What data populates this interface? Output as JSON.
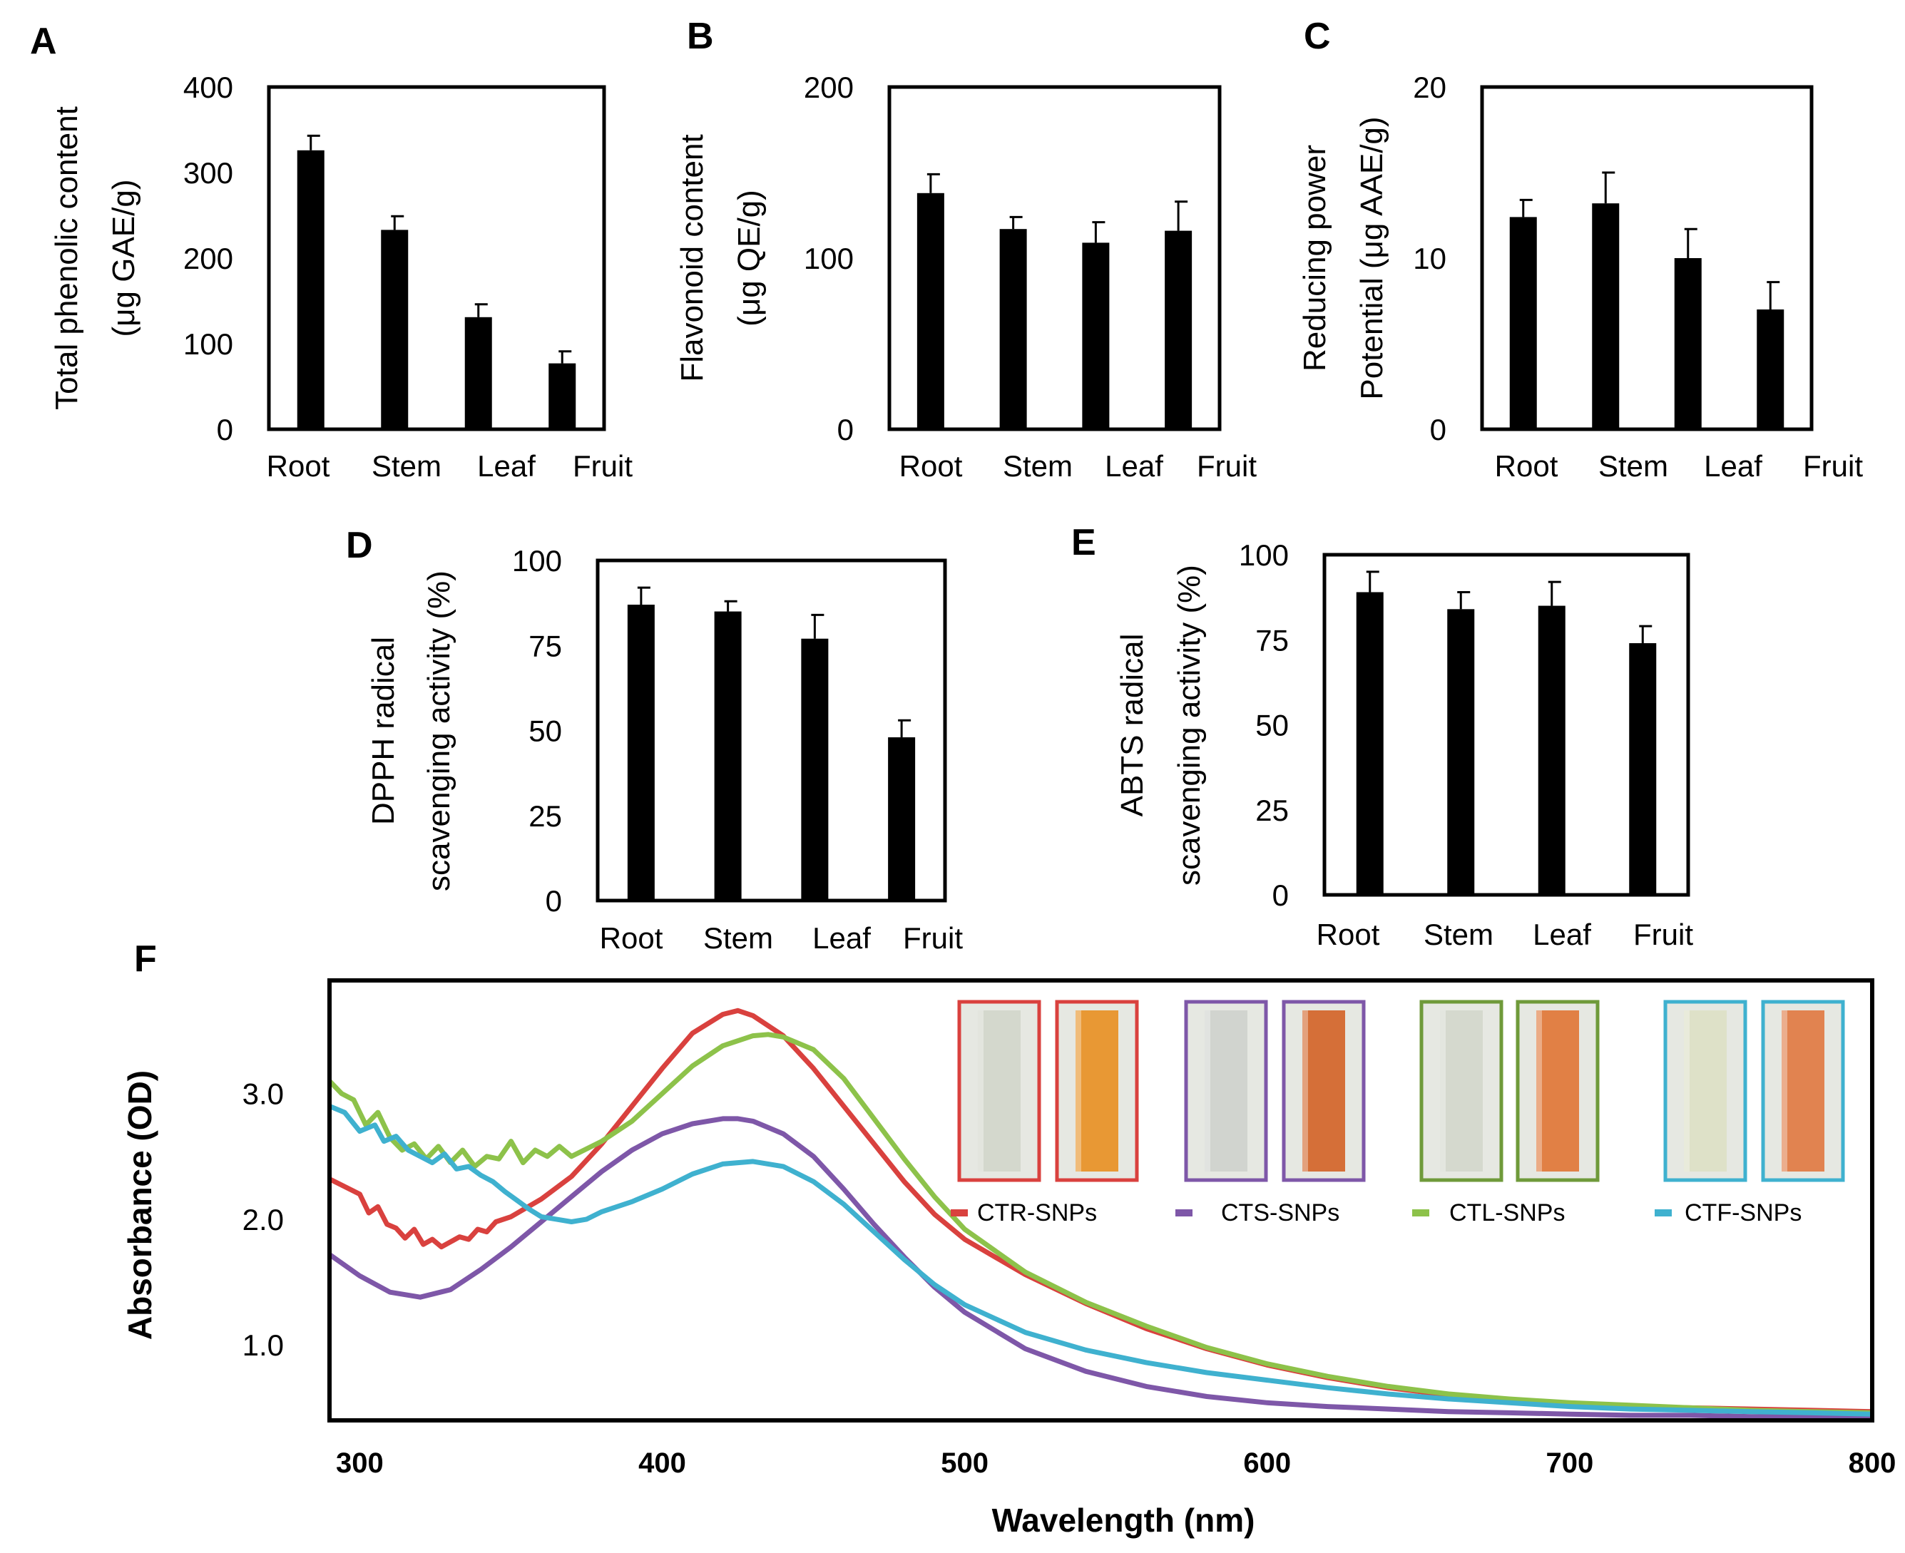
{
  "chart_data": [
    {
      "panel": "A",
      "type": "bar",
      "categories": [
        "Root",
        "Stem",
        "Leaf",
        "Fruit"
      ],
      "values": [
        326,
        233,
        131,
        77
      ],
      "errors": [
        17,
        16,
        15,
        14
      ],
      "ylabel": [
        "Total phenolic content",
        "(μg GAE/g)"
      ],
      "ylim": [
        0,
        400
      ],
      "yticks": [
        "0",
        "100",
        "200",
        "300",
        "400"
      ]
    },
    {
      "panel": "B",
      "type": "bar",
      "categories": [
        "Root",
        "Stem",
        "Leaf",
        "Fruit"
      ],
      "values": [
        138,
        117,
        109,
        116
      ],
      "errors": [
        11,
        7,
        12,
        17
      ],
      "ylabel": [
        "Flavonoid content",
        "(μg QE/g)"
      ],
      "ylim": [
        0,
        200
      ],
      "yticks": [
        "0",
        "100",
        "200"
      ]
    },
    {
      "panel": "C",
      "type": "bar",
      "categories": [
        "Root",
        "Stem",
        "Leaf",
        "Fruit"
      ],
      "values": [
        12.4,
        13.2,
        10.0,
        7.0
      ],
      "errors": [
        1.0,
        1.8,
        1.7,
        1.6
      ],
      "ylabel": [
        "Reducing power",
        "Potential (μg AAE/g)"
      ],
      "ylim": [
        0,
        20
      ],
      "yticks": [
        "0",
        "10",
        "20"
      ]
    },
    {
      "panel": "D",
      "type": "bar",
      "categories": [
        "Root",
        "Stem",
        "Leaf",
        "Fruit"
      ],
      "values": [
        87,
        85,
        77,
        48
      ],
      "errors": [
        5,
        3,
        7,
        5
      ],
      "ylabel": [
        "DPPH radical",
        "scavenging activity (%)"
      ],
      "ylim": [
        0,
        100
      ],
      "yticks": [
        "0",
        "25",
        "50",
        "75",
        "100"
      ]
    },
    {
      "panel": "E",
      "type": "bar",
      "categories": [
        "Root",
        "Stem",
        "Leaf",
        "Fruit"
      ],
      "values": [
        89,
        84,
        85,
        74
      ],
      "errors": [
        6,
        5,
        7,
        5
      ],
      "ylabel": [
        "ABTS radical",
        "scavenging activity (%)"
      ],
      "ylim": [
        0,
        100
      ],
      "yticks": [
        "0",
        "25",
        "50",
        "75",
        "100"
      ]
    },
    {
      "panel": "F",
      "type": "line",
      "xlabel": "Wavelength (nm)",
      "ylabel": "Absorbance (OD)",
      "xlim": [
        290,
        800
      ],
      "ylim": [
        0.4,
        3.9
      ],
      "xticks": [
        "300",
        "400",
        "500",
        "600",
        "700",
        "800"
      ],
      "yticks": [
        "1.0",
        "2.0",
        "3.0"
      ],
      "series": [
        {
          "name": "CTR-SNPs",
          "color": "#d9413e",
          "x": [
            290,
            295,
            300,
            303,
            306,
            309,
            312,
            315,
            318,
            321,
            324,
            327,
            330,
            333,
            336,
            339,
            342,
            345,
            350,
            360,
            370,
            380,
            390,
            400,
            410,
            420,
            425,
            430,
            440,
            450,
            460,
            470,
            480,
            490,
            500,
            520,
            540,
            560,
            580,
            600,
            620,
            640,
            660,
            680,
            700,
            720,
            740,
            760,
            780,
            800
          ],
          "y": [
            2.32,
            2.26,
            2.2,
            2.05,
            2.1,
            1.96,
            1.93,
            1.85,
            1.92,
            1.8,
            1.84,
            1.78,
            1.82,
            1.86,
            1.84,
            1.92,
            1.9,
            1.98,
            2.02,
            2.16,
            2.34,
            2.6,
            2.9,
            3.2,
            3.48,
            3.63,
            3.66,
            3.62,
            3.46,
            3.2,
            2.9,
            2.6,
            2.3,
            2.04,
            1.84,
            1.56,
            1.33,
            1.13,
            0.97,
            0.84,
            0.74,
            0.66,
            0.6,
            0.56,
            0.53,
            0.51,
            0.5,
            0.49,
            0.48,
            0.47
          ]
        },
        {
          "name": "CTS-SNPs",
          "color": "#7e57a8",
          "x": [
            290,
            300,
            310,
            320,
            330,
            340,
            350,
            360,
            370,
            380,
            390,
            400,
            410,
            420,
            425,
            430,
            440,
            450,
            460,
            470,
            480,
            490,
            500,
            520,
            540,
            560,
            580,
            600,
            620,
            640,
            660,
            680,
            700,
            720,
            740,
            760,
            780,
            800
          ],
          "y": [
            1.72,
            1.55,
            1.42,
            1.38,
            1.44,
            1.6,
            1.78,
            1.98,
            2.18,
            2.38,
            2.55,
            2.68,
            2.76,
            2.8,
            2.8,
            2.78,
            2.68,
            2.5,
            2.24,
            1.96,
            1.7,
            1.46,
            1.26,
            0.97,
            0.79,
            0.67,
            0.59,
            0.54,
            0.51,
            0.49,
            0.47,
            0.46,
            0.45,
            0.44,
            0.44,
            0.43,
            0.43,
            0.42
          ]
        },
        {
          "name": "CTL-SNPs",
          "color": "#8dc24a",
          "x": [
            290,
            294,
            298,
            302,
            306,
            310,
            314,
            318,
            322,
            326,
            330,
            334,
            338,
            342,
            346,
            350,
            354,
            358,
            362,
            366,
            370,
            380,
            390,
            400,
            410,
            420,
            430,
            435,
            440,
            450,
            460,
            470,
            480,
            490,
            500,
            520,
            540,
            560,
            580,
            600,
            620,
            640,
            660,
            680,
            700,
            720,
            740,
            760,
            780,
            800
          ],
          "y": [
            3.1,
            3.0,
            2.95,
            2.75,
            2.85,
            2.65,
            2.55,
            2.6,
            2.48,
            2.58,
            2.45,
            2.55,
            2.42,
            2.5,
            2.48,
            2.62,
            2.45,
            2.55,
            2.5,
            2.58,
            2.5,
            2.62,
            2.78,
            3.0,
            3.22,
            3.38,
            3.46,
            3.47,
            3.45,
            3.35,
            3.12,
            2.8,
            2.48,
            2.18,
            1.92,
            1.58,
            1.34,
            1.15,
            0.98,
            0.85,
            0.75,
            0.67,
            0.61,
            0.57,
            0.54,
            0.52,
            0.5,
            0.48,
            0.47,
            0.46
          ]
        },
        {
          "name": "CTF-SNPs",
          "color": "#3fb1cf",
          "x": [
            290,
            295,
            300,
            305,
            308,
            312,
            316,
            320,
            324,
            328,
            332,
            336,
            340,
            344,
            348,
            352,
            356,
            360,
            365,
            370,
            375,
            380,
            390,
            400,
            410,
            420,
            430,
            440,
            450,
            460,
            470,
            480,
            490,
            500,
            520,
            540,
            560,
            580,
            600,
            620,
            640,
            660,
            680,
            700,
            720,
            740,
            760,
            780,
            800
          ],
          "y": [
            2.9,
            2.85,
            2.7,
            2.75,
            2.62,
            2.66,
            2.55,
            2.5,
            2.45,
            2.52,
            2.4,
            2.42,
            2.35,
            2.3,
            2.22,
            2.15,
            2.08,
            2.02,
            2.0,
            1.98,
            2.0,
            2.06,
            2.14,
            2.24,
            2.36,
            2.44,
            2.46,
            2.42,
            2.3,
            2.12,
            1.9,
            1.68,
            1.48,
            1.32,
            1.1,
            0.96,
            0.86,
            0.78,
            0.72,
            0.66,
            0.61,
            0.57,
            0.54,
            0.51,
            0.49,
            0.48,
            0.47,
            0.46,
            0.45
          ]
        }
      ],
      "legend_position": "top-right"
    }
  ],
  "insets": [
    {
      "pair": "CTR",
      "color": "#d9413e",
      "before": "#d3d7cb",
      "after": "#e8942a"
    },
    {
      "pair": "CTS",
      "color": "#7e57a8",
      "before": "#d0d3cd",
      "after": "#d4682e"
    },
    {
      "pair": "CTL",
      "color": "#6f9a3a",
      "before": "#d4d8cc",
      "after": "#e07a3c"
    },
    {
      "pair": "CTF",
      "color": "#3fb1cf",
      "before": "#dde0c6",
      "after": "#e07d48"
    }
  ]
}
